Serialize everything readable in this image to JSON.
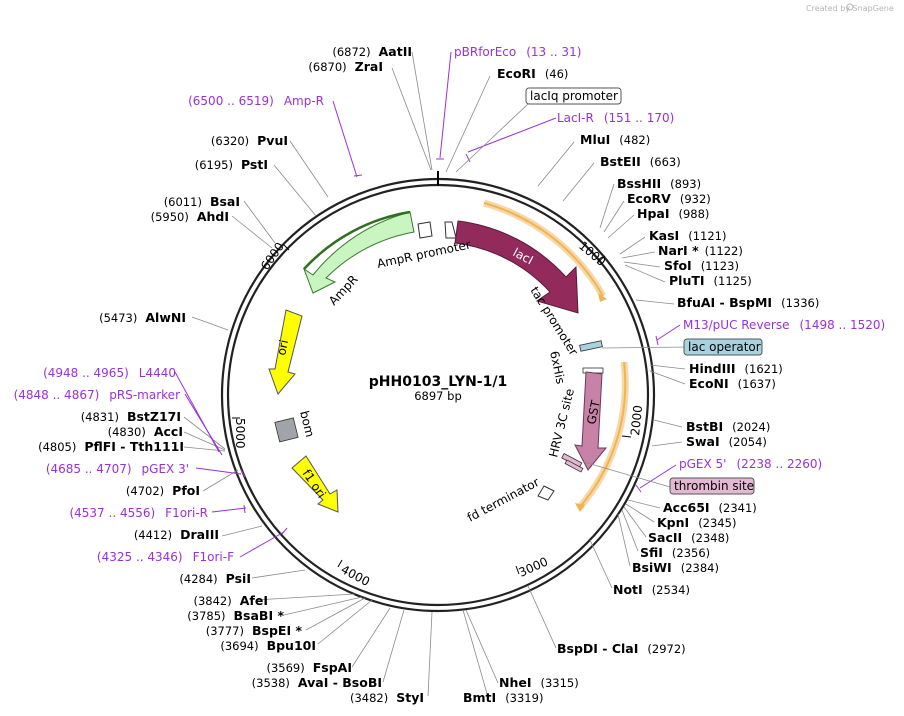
{
  "credit": "Created by SnapGene",
  "plasmid": {
    "name": "pHH0103_LYN-1/1",
    "size": "6897 bp"
  },
  "ticks": [
    "1000",
    "2000",
    "3000",
    "4000",
    "5000",
    "6000"
  ],
  "sites": [
    {
      "pos": "(6872)",
      "name": "AatII"
    },
    {
      "pos": "(6870)",
      "name": "ZraI"
    },
    {
      "pos": "(46)",
      "name": "EcoRI"
    },
    {
      "pos": "(482)",
      "name": "MluI"
    },
    {
      "pos": "(663)",
      "name": "BstEII"
    },
    {
      "pos": "(893)",
      "name": "BssHII"
    },
    {
      "pos": "(932)",
      "name": "EcoRV"
    },
    {
      "pos": "(988)",
      "name": "HpaI"
    },
    {
      "pos": "(1121)",
      "name": "KasI"
    },
    {
      "pos": "(1122)",
      "name": "NarI *"
    },
    {
      "pos": "(1123)",
      "name": "SfoI"
    },
    {
      "pos": "(1125)",
      "name": "PluTI"
    },
    {
      "pos": "(1336)",
      "name": "BfuAI - BspMI"
    },
    {
      "pos": "(1621)",
      "name": "HindIII"
    },
    {
      "pos": "(1637)",
      "name": "EcoNI"
    },
    {
      "pos": "(2024)",
      "name": "BstBI"
    },
    {
      "pos": "(2054)",
      "name": "SwaI"
    },
    {
      "pos": "(2341)",
      "name": "Acc65I"
    },
    {
      "pos": "(2345)",
      "name": "KpnI"
    },
    {
      "pos": "(2348)",
      "name": "SacII"
    },
    {
      "pos": "(2356)",
      "name": "SfiI"
    },
    {
      "pos": "(2384)",
      "name": "BsiWI"
    },
    {
      "pos": "(2534)",
      "name": "NotI"
    },
    {
      "pos": "(2972)",
      "name": "BspDI - ClaI"
    },
    {
      "pos": "(3315)",
      "name": "NheI"
    },
    {
      "pos": "(3319)",
      "name": "BmtI"
    },
    {
      "pos": "(3482)",
      "name": "StyI"
    },
    {
      "pos": "(3538)",
      "name": "AvaI - BsoBI"
    },
    {
      "pos": "(3569)",
      "name": "FspAI"
    },
    {
      "pos": "(3694)",
      "name": "Bpu10I"
    },
    {
      "pos": "(3777)",
      "name": "BspEI *"
    },
    {
      "pos": "(3785)",
      "name": "BsaBI *"
    },
    {
      "pos": "(3842)",
      "name": "AfeI"
    },
    {
      "pos": "(4284)",
      "name": "PsiI"
    },
    {
      "pos": "(4412)",
      "name": "DraIII"
    },
    {
      "pos": "(4702)",
      "name": "PfoI"
    },
    {
      "pos": "(4805)",
      "name": "PflFI - Tth111I"
    },
    {
      "pos": "(4830)",
      "name": "AccI"
    },
    {
      "pos": "(4831)",
      "name": "BstZ17I"
    },
    {
      "pos": "(5473)",
      "name": "AlwNI"
    },
    {
      "pos": "(5950)",
      "name": "AhdI"
    },
    {
      "pos": "(6011)",
      "name": "BsaI"
    },
    {
      "pos": "(6195)",
      "name": "PstI"
    },
    {
      "pos": "(6320)",
      "name": "PvuI"
    }
  ],
  "primer_features": [
    {
      "name": "pBRforEco",
      "range": "(13 .. 31)"
    },
    {
      "name": "LacI-R",
      "range": "(151 .. 170)"
    },
    {
      "name": "M13/pUC Reverse",
      "range": "(1498 .. 1520)"
    },
    {
      "name": "pGEX 5'",
      "range": "(2238 .. 2260)"
    },
    {
      "name": "F1ori-F",
      "range": "(4325 .. 4346)"
    },
    {
      "name": "F1ori-R",
      "range": "(4537 .. 4556)"
    },
    {
      "name": "pGEX 3'",
      "range": "(4685 .. 4707)"
    },
    {
      "name": "pRS-marker",
      "range": "(4848 .. 4867)"
    },
    {
      "name": "L4440",
      "range": "(4948 .. 4965)"
    },
    {
      "name": "Amp-R",
      "range": "(6500 .. 6519)"
    }
  ],
  "boxed_features": {
    "laciq_promoter": "lacIq promoter",
    "lac_operator": "lac operator",
    "thrombin_site": "thrombin site"
  },
  "map_features": {
    "lacI": "lacI",
    "tac_promoter": "tac promoter",
    "his6": "6xHis",
    "gst": "GST",
    "hrv_3c": "HRV 3C site",
    "fd_terminator": "fd terminator",
    "ampr_promoter": "AmpR promoter",
    "ampr": "AmpR",
    "ori": "ori",
    "bom": "bom",
    "f1_ori": "f1 ori"
  },
  "colors": {
    "lacI": "#922a5c",
    "gst": "#c882a8",
    "ampr": "#c8f5c0",
    "ori": "#ffff00",
    "f1_ori": "#ffff00",
    "bom": "#a0a4aa",
    "lac_operator_box": "#a7d3e0",
    "thrombin_box": "#e4b7d3",
    "primer": "#9b30d9",
    "orf_highlight": "#f2b355"
  }
}
